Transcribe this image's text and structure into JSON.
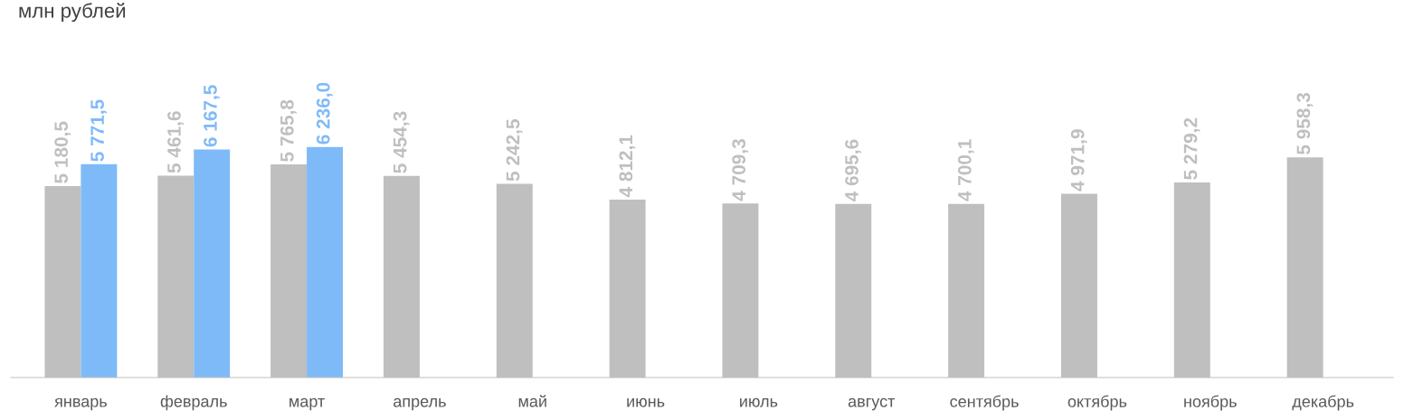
{
  "chart_data": {
    "type": "bar",
    "title": "млн рублей",
    "categories": [
      "январь",
      "февраль",
      "март",
      "апрель",
      "май",
      "июнь",
      "июль",
      "август",
      "сентябрь",
      "октябрь",
      "ноябрь",
      "декабрь"
    ],
    "series": [
      {
        "color": "#bfbfbf",
        "values": [
          5180.5,
          5461.6,
          5765.8,
          5454.3,
          5242.5,
          4812.1,
          4709.3,
          4695.6,
          4700.1,
          4971.9,
          5279.2,
          5958.3
        ],
        "value_labels": [
          "5 180,5",
          "5 461,6",
          "5 765,8",
          "5 454,3",
          "5 242,5",
          "4 812,1",
          "4 709,3",
          "4 695,6",
          "4 700,1",
          "4 971,9",
          "5 279,2",
          "5 958,3"
        ]
      },
      {
        "color": "#7fbaf8",
        "values": [
          5771.5,
          6167.5,
          6236.0,
          null,
          null,
          null,
          null,
          null,
          null,
          null,
          null,
          null
        ],
        "value_labels": [
          "5 771,5",
          "6 167,5",
          "6 236,0",
          null,
          null,
          null,
          null,
          null,
          null,
          null,
          null,
          null
        ]
      }
    ],
    "tick_labels": "x",
    "grid": false,
    "legend": false
  }
}
